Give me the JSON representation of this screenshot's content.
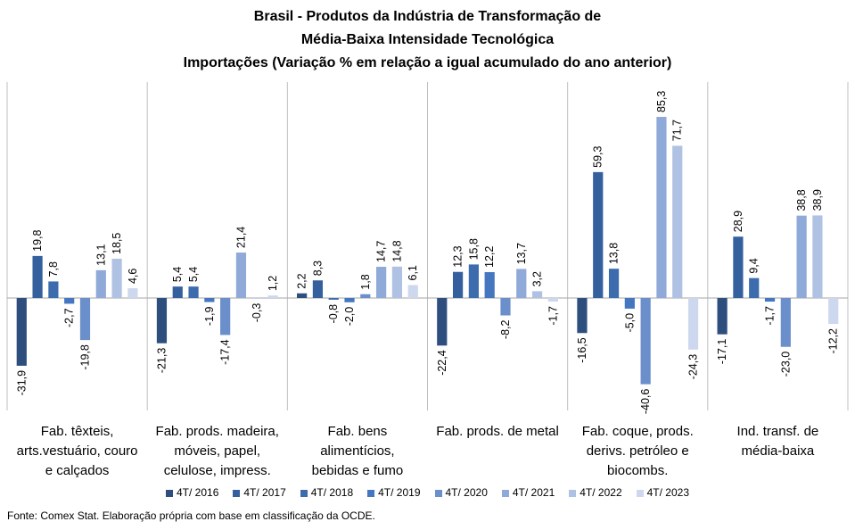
{
  "titles": [
    "Brasil - Produtos da Indústria de Transformação de",
    "Média-Baixa Intensidade Tecnológica",
    "Importações (Variação % em relação a igual acumulado do ano anterior)"
  ],
  "source": "Fonte: Comex Stat. Elaboração própria com base em classificação da OCDE.",
  "chart_data": {
    "type": "bar",
    "categories": [
      [
        "Fab. têxteis,",
        "arts.vestuário, couro",
        "e calçados"
      ],
      [
        "Fab. prods. madeira,",
        "móveis, papel,",
        "celulose, impress."
      ],
      [
        "Fab. bens",
        "alimentícios,",
        "bebidas e fumo"
      ],
      [
        "Fab. prods. de metal"
      ],
      [
        "Fab. coque, prods.",
        "derivs. petróleo e",
        "biocombs."
      ],
      [
        "Ind. transf. de",
        "média-baixa"
      ]
    ],
    "series": [
      {
        "name": "4T/ 2016",
        "color": "#2e4e7e",
        "values": [
          -31.9,
          -21.3,
          2.2,
          -22.4,
          -16.5,
          -17.1
        ],
        "labels": [
          "-31,9",
          "-21,3",
          "2,2",
          "-22,4",
          "-16,5",
          "-17,1"
        ]
      },
      {
        "name": "4T/ 2017",
        "color": "#34609e",
        "values": [
          19.8,
          5.4,
          8.3,
          12.3,
          59.3,
          28.9
        ],
        "labels": [
          "19,8",
          "5,4",
          "8,3",
          "12,3",
          "59,3",
          "28,9"
        ]
      },
      {
        "name": "4T/ 2018",
        "color": "#3c6cad",
        "values": [
          7.8,
          5.4,
          -0.8,
          15.8,
          13.8,
          9.4
        ],
        "labels": [
          "7,8",
          "5,4",
          "-0,8",
          "15,8",
          "13,8",
          "9,4"
        ]
      },
      {
        "name": "4T/ 2019",
        "color": "#4477c0",
        "values": [
          -2.7,
          -1.9,
          -2.0,
          12.2,
          -5.0,
          -1.7
        ],
        "labels": [
          "-2,7",
          "-1,9",
          "-2,0",
          "12,2",
          "-5,0",
          "-1,7"
        ]
      },
      {
        "name": "4T/ 2020",
        "color": "#6a8fca",
        "values": [
          -19.8,
          -17.4,
          1.8,
          -8.2,
          -40.6,
          -23.0
        ],
        "labels": [
          "-19,8",
          "-17,4",
          "1,8",
          "-8,2",
          "-40,6",
          "-23,0"
        ]
      },
      {
        "name": "4T/ 2021",
        "color": "#8fa9d8",
        "values": [
          13.1,
          21.4,
          14.7,
          13.7,
          85.3,
          38.8
        ],
        "labels": [
          "13,1",
          "21,4",
          "14,7",
          "13,7",
          "85,3",
          "38,8"
        ]
      },
      {
        "name": "4T/ 2022",
        "color": "#b0c2e3",
        "values": [
          18.5,
          -0.3,
          14.8,
          3.2,
          71.7,
          38.9
        ],
        "labels": [
          "18,5",
          "-0,3",
          "14,8",
          "3,2",
          "71,7",
          "38,9"
        ]
      },
      {
        "name": "4T/ 2023",
        "color": "#cdd8ee",
        "values": [
          4.6,
          1.2,
          6.1,
          -1.7,
          -24.3,
          -12.2
        ],
        "labels": [
          "4,6",
          "1,2",
          "6,1",
          "-1,7",
          "-24,3",
          "-12,2"
        ]
      }
    ],
    "ylim": [
      -47,
      100
    ],
    "legend_position": "bottom"
  }
}
